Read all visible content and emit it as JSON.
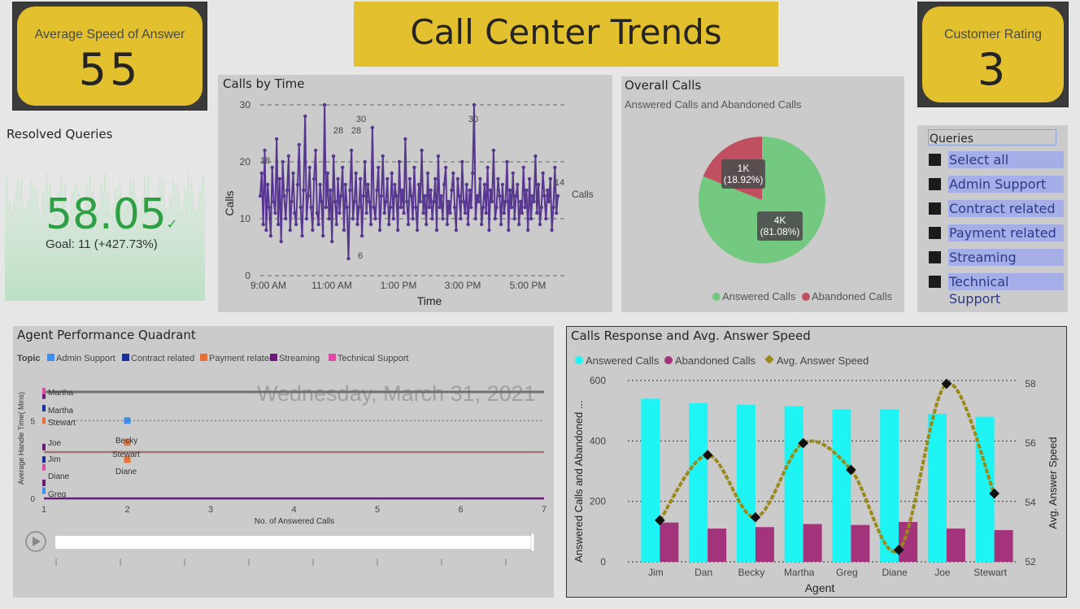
{
  "title": "Call Center Trends",
  "kpi_speed": {
    "label": "Average Speed of Answer",
    "value": "55"
  },
  "kpi_rating": {
    "label": "Customer Rating",
    "value": "3"
  },
  "resolved": {
    "title": "Resolved Queries",
    "value": "58.05",
    "check": "✓",
    "goal": "Goal: 11 (+427.73%)"
  },
  "calls_by_time": {
    "title": "Calls by Time",
    "ylabel": "Calls",
    "xlabel": "Time",
    "legend": "Calls",
    "annotations": [
      "18",
      "28",
      "28",
      "30",
      "30",
      "6",
      "14"
    ]
  },
  "overall_calls": {
    "title": "Overall Calls",
    "subtitle": "Answered Calls and Abandoned Calls",
    "slice_answered": {
      "value": "4K",
      "pct": "(81.08%)"
    },
    "slice_abandoned": {
      "value": "1K",
      "pct": "(18.92%)"
    },
    "legend": [
      "Answered Calls",
      "Abandoned Calls"
    ]
  },
  "queries": {
    "title": "Queries",
    "items": [
      "Select all",
      "Admin Support",
      "Contract related",
      "Payment related",
      "Streaming",
      "Technical Support"
    ]
  },
  "quadrant": {
    "title": "Agent Performance Quadrant",
    "legend_title": "Topic",
    "legend": [
      "Admin Support",
      "Contract related",
      "Payment related",
      "Streaming",
      "Technical Support"
    ],
    "date": "Wednesday, March 31, 2021",
    "ylabel": "Average Handle Time( Mins)",
    "xlabel": "No. of Answered Calls",
    "point_labels": [
      "Martha",
      "Martha",
      "Stewart",
      "Joe",
      "Jim",
      "Diane",
      "Greg",
      "Becky",
      "Stewart",
      "Diane"
    ]
  },
  "colors": {
    "gold": "#e3c02e",
    "purple": "#57378f",
    "green": "#72c97f",
    "red": "#c0505f",
    "cyan": "#1ff4f4",
    "magenta": "#a3337b",
    "olive": "#9a8a1a"
  },
  "chart_data": [
    {
      "type": "line",
      "title": "Calls by Time",
      "xlabel": "Time",
      "ylabel": "Calls",
      "x_ticks": [
        "9:00 AM",
        "11:00 AM",
        "1:00 PM",
        "3:00 PM",
        "5:00 PM"
      ],
      "ylim": [
        0,
        30
      ],
      "y_ticks": [
        0,
        10,
        20,
        30
      ],
      "series": [
        {
          "name": "Calls",
          "values": [
            14,
            18,
            9,
            22,
            8,
            16,
            12,
            7,
            19,
            13,
            11,
            24,
            9,
            17,
            6,
            20,
            14,
            10,
            15,
            21,
            8,
            13,
            18,
            11,
            9,
            16,
            23,
            12,
            7,
            15,
            28,
            10,
            14,
            19,
            12,
            8,
            17,
            22,
            11,
            9,
            16,
            13,
            7,
            30,
            12,
            18,
            10,
            15,
            6,
            21,
            13,
            9,
            17,
            11,
            14,
            19,
            8,
            16,
            12,
            3,
            15,
            22,
            10,
            13,
            18,
            9,
            12,
            17,
            7,
            14,
            20,
            11,
            16,
            13,
            9,
            26,
            12,
            10,
            15,
            19,
            8,
            14,
            21,
            11,
            13,
            17,
            9,
            12,
            18,
            10,
            16,
            14,
            8,
            20,
            12,
            15,
            11,
            24,
            13,
            9,
            17,
            14,
            10,
            19,
            12,
            8,
            16,
            13,
            22,
            11,
            14,
            9,
            18,
            12,
            15,
            10,
            13,
            17,
            8,
            21,
            12,
            14,
            10,
            16,
            19,
            9,
            13,
            11,
            15,
            18,
            12,
            8,
            17,
            14,
            10,
            20,
            13,
            11,
            16,
            9,
            15,
            12,
            18,
            30,
            10,
            14,
            13,
            17,
            9,
            12,
            16,
            11,
            19,
            8,
            15,
            13,
            22,
            10,
            12,
            17,
            14,
            9,
            16,
            11,
            13,
            20,
            8,
            15,
            12,
            18,
            10,
            14,
            16,
            9,
            13,
            11,
            19,
            12,
            15,
            8,
            17,
            10,
            14,
            13,
            21,
            11,
            16,
            9,
            12,
            18,
            14,
            10,
            15,
            13,
            17,
            8,
            12,
            19,
            11,
            14
          ]
        }
      ]
    },
    {
      "type": "pie",
      "title": "Overall Calls",
      "categories": [
        "Answered Calls",
        "Abandoned Calls"
      ],
      "values": [
        81.08,
        18.92
      ],
      "labels": [
        "4K (81.08%)",
        "1K (18.92%)"
      ],
      "legend": "bottom"
    },
    {
      "type": "scatter",
      "title": "Agent Performance Quadrant",
      "xlabel": "No. of Answered Calls",
      "ylabel": "Average Handle Time( Mins)",
      "xlim": [
        1,
        7
      ],
      "x_ticks": [
        1,
        2,
        3,
        4,
        5,
        6,
        7
      ],
      "y_ticks": [
        0,
        5
      ],
      "series": [
        {
          "name": "Admin Support",
          "points": [
            [
              2,
              5
            ],
            [
              1,
              0.5
            ]
          ]
        },
        {
          "name": "Contract related",
          "points": [
            [
              1,
              5.8
            ],
            [
              1,
              2.5
            ]
          ]
        },
        {
          "name": "Payment related",
          "points": [
            [
              1,
              5
            ],
            [
              2,
              3.6
            ],
            [
              2,
              2.5
            ]
          ]
        },
        {
          "name": "Streaming",
          "points": [
            [
              1,
              6.6
            ],
            [
              1,
              3.3
            ],
            [
              1,
              1.0
            ]
          ]
        },
        {
          "name": "Technical Support",
          "points": [
            [
              1,
              6.9
            ],
            [
              1,
              2.0
            ]
          ]
        }
      ]
    },
    {
      "type": "bar",
      "title": "Calls Response and Avg. Answer Speed",
      "xlabel": "Agent",
      "ylabel": "Answered Calls and Abandoned ...",
      "y2label": "Avg. Answer Speed",
      "categories": [
        "Jim",
        "Dan",
        "Becky",
        "Martha",
        "Greg",
        "Diane",
        "Joe",
        "Stewart"
      ],
      "ylim": [
        0,
        600
      ],
      "y_ticks": [
        0,
        200,
        400,
        600
      ],
      "y2lim": [
        52,
        58
      ],
      "y2_ticks": [
        52,
        54,
        56,
        58
      ],
      "legend": "top-left",
      "series": [
        {
          "name": "Answered Calls",
          "values": [
            540,
            525,
            520,
            515,
            505,
            505,
            490,
            480
          ]
        },
        {
          "name": "Abandoned Calls",
          "values": [
            130,
            110,
            115,
            125,
            122,
            132,
            110,
            105
          ]
        },
        {
          "name": "Avg. Answer Speed",
          "axis": "right",
          "values": [
            53.4,
            55.6,
            53.5,
            56.0,
            55.1,
            52.4,
            58.0,
            54.3
          ]
        }
      ]
    }
  ]
}
